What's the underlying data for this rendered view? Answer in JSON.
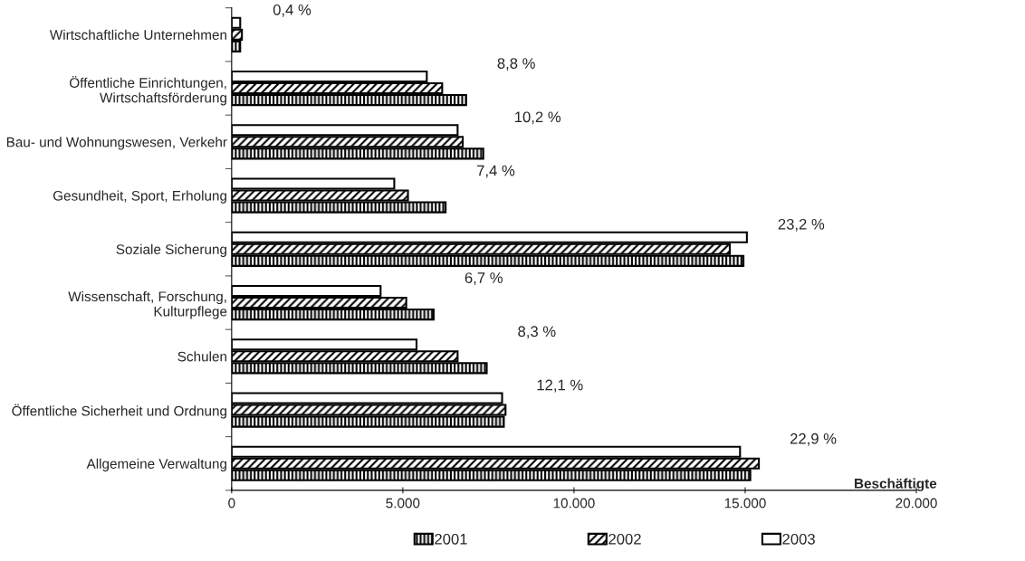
{
  "chart_data": {
    "type": "bar",
    "orientation": "horizontal",
    "xlabel": "Beschäftigte",
    "categories": [
      "Wirtschaftliche Unternehmen",
      "Öffentliche Einrichtungen, Wirtschaftsförderung",
      "Bau- und Wohnungswesen, Verkehr",
      "Gesundheit, Sport, Erholung",
      "Soziale Sicherung",
      "Wissenschaft, Forschung, Kulturpflege",
      "Schulen",
      "Öffentliche Sicherheit und Ordnung",
      "Allgemeine Verwaltung"
    ],
    "series": [
      {
        "name": "2003",
        "color": "#000000",
        "values": [
          250,
          5700,
          6600,
          4750,
          15050,
          4350,
          5400,
          7900,
          14850
        ]
      },
      {
        "name": "2002",
        "color": "#000000",
        "values": [
          300,
          6150,
          6750,
          5150,
          14550,
          5100,
          6600,
          8000,
          15400
        ]
      },
      {
        "name": "2001",
        "color": "#000000",
        "values": [
          250,
          6850,
          7350,
          6250,
          14950,
          5900,
          7450,
          7950,
          15150
        ]
      }
    ],
    "annotations": [
      "0,4 %",
      "8,8 %",
      "10,2 %",
      "7,4 %",
      "23,2 %",
      "6,7 %",
      "8,3 %",
      "12,1 %",
      "22,9 %"
    ],
    "xlim": [
      0,
      20000
    ],
    "xticks": [
      0,
      {
        "value": 5000,
        "label": "5.000"
      },
      {
        "value": 10000,
        "label": "10.000"
      },
      {
        "value": 15000,
        "label": "15.000"
      },
      {
        "value": 20000,
        "label": "20.000"
      }
    ],
    "legend": "bottom",
    "grid": false
  }
}
